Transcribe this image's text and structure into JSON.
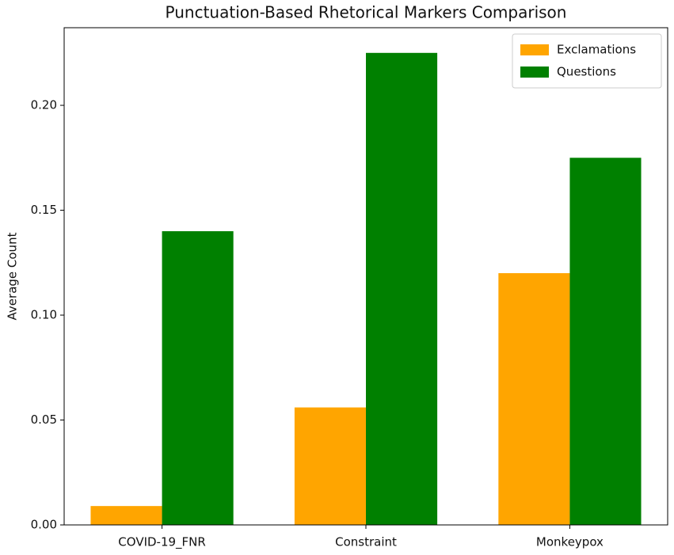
{
  "chart_data": {
    "type": "bar",
    "title": "Punctuation-Based Rhetorical Markers Comparison",
    "ylabel": "Average Count",
    "categories": [
      "COVID-19_FNR",
      "Constraint",
      "Monkeypox"
    ],
    "series": [
      {
        "name": "Exclamations",
        "color": "#ffa500",
        "values": [
          0.009,
          0.056,
          0.12
        ]
      },
      {
        "name": "Questions",
        "color": "#008000",
        "values": [
          0.14,
          0.225,
          0.175
        ]
      }
    ],
    "ylim": [
      0,
      0.237
    ],
    "yticks": [
      {
        "value": 0,
        "label": "0.00"
      },
      {
        "value": 0.05,
        "label": "0.05"
      },
      {
        "value": 0.1,
        "label": "0.10"
      },
      {
        "value": 0.15,
        "label": "0.15"
      },
      {
        "value": 0.2,
        "label": "0.20"
      }
    ],
    "grid": false,
    "legend": "upper right"
  }
}
